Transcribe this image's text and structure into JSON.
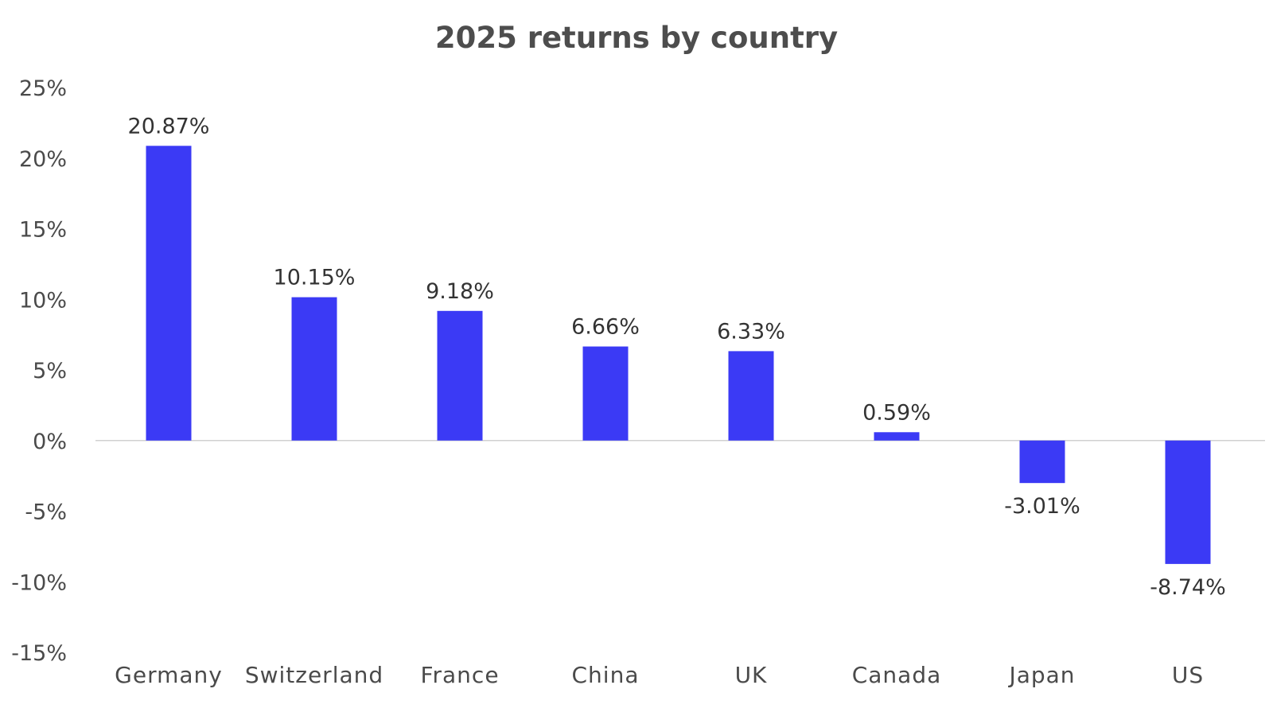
{
  "chart_data": {
    "type": "bar",
    "title": "2025 returns by country",
    "xlabel": "",
    "ylabel": "",
    "categories": [
      "Germany",
      "Switzerland",
      "France",
      "China",
      "UK",
      "Canada",
      "Japan",
      "US"
    ],
    "values": [
      20.87,
      10.15,
      9.18,
      6.66,
      6.33,
      0.59,
      -3.01,
      -8.74
    ],
    "value_labels": [
      "20.87%",
      "10.15%",
      "9.18%",
      "6.66%",
      "6.33%",
      "0.59%",
      "-3.01%",
      "-8.74%"
    ],
    "ylim": [
      -15,
      25
    ],
    "yticks": [
      25,
      20,
      15,
      10,
      5,
      0,
      -5,
      -10,
      -15
    ],
    "ytick_labels": [
      "25%",
      "20%",
      "15%",
      "10%",
      "5%",
      "0%",
      "-5%",
      "-10%",
      "-15%"
    ],
    "grid": false,
    "legend": "none",
    "colors": {
      "bar": "#3b3af5",
      "baseline": "#d0d0d0",
      "title": "#4d4d4d",
      "text": "#4a4a4a"
    }
  }
}
